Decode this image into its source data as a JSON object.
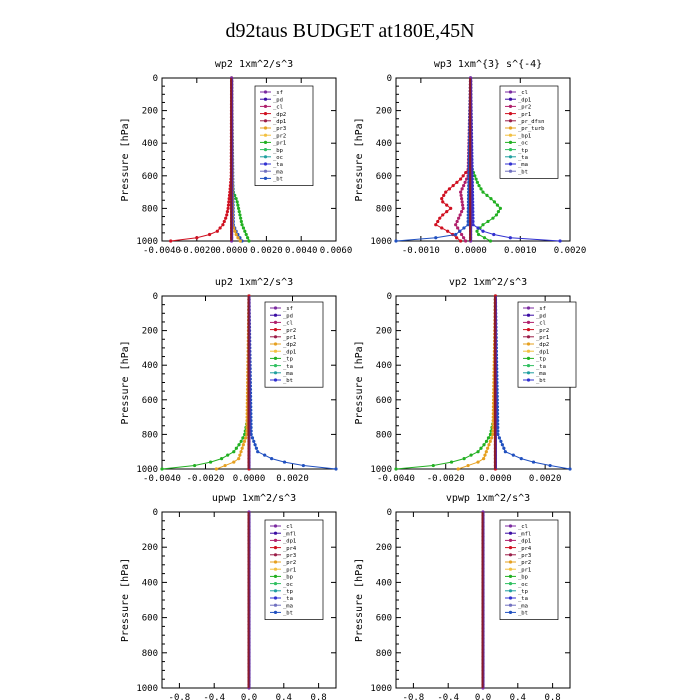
{
  "page_title": "d92taus  BUDGET at180E,45N",
  "colors": {
    "sf": "#7b2aa0",
    "pd": "#3a0ca3",
    "cl": "#b0206b",
    "dp2": "#d01020",
    "dp1": "#9b1d48",
    "pr3": "#e6a020",
    "pr2": "#f2c040",
    "pr1": "#22b022",
    "bp": "#30c060",
    "oc": "#20a0a0",
    "ta": "#7070c0",
    "ma": "#2050c0",
    "bt": "#30d0e0",
    "tp": "#3030d0",
    "pr_dfsn": "#e08020",
    "pr_turb": "#e0c020",
    "bp1": "#50c050",
    "mfl": "#a03090",
    "pr4": "#c03030"
  },
  "chart_data": [
    {
      "type": "line",
      "title": "wp2   1xm^2/s^3",
      "ylabel": "Pressure [hPa]",
      "xlim": [
        -0.004,
        0.006
      ],
      "ylim": [
        1000,
        0
      ],
      "x_ticks": [
        -0.004,
        -0.002,
        0.0,
        0.002,
        0.004,
        0.006
      ],
      "x_tick_labels": [
        "-0.0040",
        "-0.0020",
        "0.0000",
        "0.0020",
        "0.0040",
        "0.0060"
      ],
      "y_ticks": [
        0,
        200,
        400,
        600,
        800,
        1000
      ],
      "legend": [
        "_sf",
        "_pd",
        "_cl",
        "_dp2",
        "_dp1",
        "_pr3",
        "_pr2",
        "_pr1",
        "_bp",
        "_oc",
        "_ta",
        "_ma",
        "_bt"
      ],
      "series": [
        {
          "name": "_pr1",
          "color_key": "pr1",
          "profile": [
            [
              0,
              0
            ],
            [
              600,
              2e-05
            ],
            [
              700,
              0.0001
            ],
            [
              750,
              0.0003
            ],
            [
              800,
              0.0004
            ],
            [
              850,
              0.0005
            ],
            [
              900,
              0.0006
            ],
            [
              950,
              0.0008
            ],
            [
              1000,
              0.001
            ]
          ]
        },
        {
          "name": "_dp2",
          "color_key": "dp2",
          "profile": [
            [
              0,
              0
            ],
            [
              600,
              -2e-05
            ],
            [
              700,
              -0.0001
            ],
            [
              800,
              -0.0002
            ],
            [
              850,
              -0.0003
            ],
            [
              900,
              -0.0005
            ],
            [
              950,
              -0.0009
            ],
            [
              980,
              -0.002
            ],
            [
              1000,
              -0.0035
            ]
          ]
        },
        {
          "name": "_ma",
          "color_key": "ma",
          "profile": [
            [
              0,
              0
            ],
            [
              900,
              0.0001
            ],
            [
              950,
              0.0003
            ],
            [
              1000,
              0.0006
            ]
          ]
        },
        {
          "name": "_pr3",
          "color_key": "pr3",
          "profile": [
            [
              0,
              0
            ],
            [
              900,
              5e-05
            ],
            [
              970,
              0.0003
            ],
            [
              1000,
              0.0005
            ]
          ]
        },
        {
          "name": "_sf",
          "color_key": "sf",
          "profile": [
            [
              0,
              0
            ],
            [
              1000,
              0
            ]
          ]
        }
      ]
    },
    {
      "type": "line",
      "title": "wp3   1xm^{3} s^{-4}",
      "ylabel": "Pressure [hPa]",
      "xlim": [
        -0.0015,
        0.002
      ],
      "ylim": [
        1000,
        0
      ],
      "x_ticks": [
        -0.001,
        0.0,
        0.001,
        0.002
      ],
      "x_tick_labels": [
        "-0.0010",
        "0.0000",
        "0.0010",
        "0.0020"
      ],
      "y_ticks": [
        0,
        200,
        400,
        600,
        800,
        1000
      ],
      "legend": [
        "_cl",
        "_dp1",
        "_pr2",
        "_pr1",
        "_pr_dfsn",
        "_pr_turb",
        "_bp1",
        "_oc",
        "_tp",
        "_ta",
        "_ma",
        "_bt"
      ],
      "series": [
        {
          "name": "_pr1",
          "color_key": "pr1",
          "profile": [
            [
              0,
              0
            ],
            [
              550,
              2e-05
            ],
            [
              650,
              0.00015
            ],
            [
              700,
              0.00025
            ],
            [
              750,
              0.00045
            ],
            [
              800,
              0.0006
            ],
            [
              850,
              0.0005
            ],
            [
              900,
              0.00025
            ],
            [
              950,
              0.0001
            ],
            [
              1000,
              0.0004
            ]
          ]
        },
        {
          "name": "_dp1",
          "color_key": "dp2",
          "profile": [
            [
              0,
              0
            ],
            [
              550,
              -2e-05
            ],
            [
              620,
              -0.0002
            ],
            [
              700,
              -0.0005
            ],
            [
              750,
              -0.0006
            ],
            [
              800,
              -0.0004
            ],
            [
              850,
              -0.0006
            ],
            [
              900,
              -0.0007
            ],
            [
              950,
              -0.0004
            ],
            [
              1000,
              -0.0002
            ]
          ]
        },
        {
          "name": "_pr2",
          "color_key": "cl",
          "profile": [
            [
              0,
              0
            ],
            [
              600,
              -5e-05
            ],
            [
              700,
              -0.0002
            ],
            [
              800,
              -0.00015
            ],
            [
              900,
              -0.0003
            ],
            [
              1000,
              -0.0001
            ]
          ]
        },
        {
          "name": "_ta",
          "color_key": "tp",
          "profile": [
            [
              0,
              0
            ],
            [
              900,
              5e-05
            ],
            [
              950,
              0.0003
            ],
            [
              980,
              0.0008
            ],
            [
              1000,
              0.0018
            ]
          ]
        },
        {
          "name": "_ma",
          "color_key": "ma",
          "profile": [
            [
              0,
              0
            ],
            [
              900,
              -5e-05
            ],
            [
              960,
              -0.0003
            ],
            [
              985,
              -0.0008
            ],
            [
              1000,
              -0.0015
            ]
          ]
        },
        {
          "name": "_cl",
          "color_key": "sf",
          "profile": [
            [
              0,
              0
            ],
            [
              1000,
              0
            ]
          ]
        }
      ]
    },
    {
      "type": "line",
      "title": "up2   1xm^2/s^3",
      "ylabel": "Pressure [hPa]",
      "xlim": [
        -0.004,
        0.004
      ],
      "ylim": [
        1000,
        0
      ],
      "x_ticks": [
        -0.004,
        -0.002,
        0.0,
        0.002
      ],
      "x_tick_labels": [
        "-0.0040",
        "-0.0020",
        "0.0000",
        "0.0020"
      ],
      "y_ticks": [
        0,
        200,
        400,
        600,
        800,
        1000
      ],
      "legend": [
        "_sf",
        "_pd",
        "_cl",
        "_pr2",
        "_pr1",
        "_dp2",
        "_dp1",
        "_tp",
        "_ta",
        "_ma",
        "_bt"
      ],
      "series": [
        {
          "name": "_dp2",
          "color_key": "pr1",
          "profile": [
            [
              0,
              0
            ],
            [
              700,
              -5e-05
            ],
            [
              800,
              -0.0002
            ],
            [
              850,
              -0.0004
            ],
            [
              900,
              -0.0007
            ],
            [
              950,
              -0.0014
            ],
            [
              980,
              -0.0025
            ],
            [
              1000,
              -0.004
            ]
          ]
        },
        {
          "name": "_tp",
          "color_key": "ma",
          "profile": [
            [
              0,
              0
            ],
            [
              800,
              0.0001
            ],
            [
              900,
              0.0004
            ],
            [
              950,
              0.0012
            ],
            [
              980,
              0.0025
            ],
            [
              1000,
              0.004
            ]
          ]
        },
        {
          "name": "_pr2",
          "color_key": "pr3",
          "profile": [
            [
              0,
              0
            ],
            [
              800,
              -0.0001
            ],
            [
              950,
              -0.0005
            ],
            [
              1000,
              -0.0015
            ]
          ]
        },
        {
          "name": "_sf",
          "color_key": "dp2",
          "profile": [
            [
              0,
              0
            ],
            [
              1000,
              0
            ]
          ]
        }
      ]
    },
    {
      "type": "line",
      "title": "vp2   1xm^2/s^3",
      "ylabel": "Pressure [hPa]",
      "xlim": [
        -0.004,
        0.003
      ],
      "ylim": [
        1000,
        0
      ],
      "x_ticks": [
        -0.004,
        -0.002,
        0.0,
        0.002
      ],
      "x_tick_labels": [
        "-0.0040",
        "-0.0020",
        "0.0000",
        "0.0020"
      ],
      "y_ticks": [
        0,
        200,
        400,
        600,
        800,
        1000
      ],
      "legend": [
        "_sf",
        "_pd",
        "_cl",
        "_pr2",
        "_pr1",
        "_dp2",
        "_dp1",
        "_tp",
        "_ta",
        "_ma",
        "_bt"
      ],
      "series": [
        {
          "name": "_dp2",
          "color_key": "pr1",
          "profile": [
            [
              0,
              0
            ],
            [
              700,
              -5e-05
            ],
            [
              800,
              -0.0002
            ],
            [
              850,
              -0.0004
            ],
            [
              900,
              -0.0007
            ],
            [
              950,
              -0.0014
            ],
            [
              980,
              -0.0025
            ],
            [
              1000,
              -0.004
            ]
          ]
        },
        {
          "name": "_tp",
          "color_key": "ma",
          "profile": [
            [
              0,
              0
            ],
            [
              800,
              0.0001
            ],
            [
              900,
              0.0004
            ],
            [
              950,
              0.0012
            ],
            [
              980,
              0.0022
            ],
            [
              1000,
              0.003
            ]
          ]
        },
        {
          "name": "_pr2",
          "color_key": "pr3",
          "profile": [
            [
              0,
              0
            ],
            [
              800,
              -0.0001
            ],
            [
              950,
              -0.0005
            ],
            [
              1000,
              -0.0015
            ]
          ]
        },
        {
          "name": "_sf",
          "color_key": "dp2",
          "profile": [
            [
              0,
              0
            ],
            [
              1000,
              0
            ]
          ]
        }
      ]
    },
    {
      "type": "line",
      "title": "upwp   1xm^2/s^3",
      "ylabel": "Pressure [hPa]",
      "xlim": [
        -1.0,
        1.0
      ],
      "ylim": [
        1000,
        0
      ],
      "x_ticks": [
        -0.8,
        -0.4,
        0.0,
        0.4,
        0.8
      ],
      "x_tick_labels": [
        "-0.8",
        "-0.4",
        "0.0",
        "0.4",
        "0.8"
      ],
      "y_ticks": [
        0,
        200,
        400,
        600,
        800,
        1000
      ],
      "legend": [
        "_cl",
        "_mfl",
        "_dp1",
        "_pr4",
        "_pr3",
        "_pr2",
        "_pr1",
        "_bp",
        "_oc",
        "_tp",
        "_ta",
        "_ma",
        "_bt"
      ],
      "series": [
        {
          "name": "_cl",
          "color_key": "sf",
          "profile": [
            [
              0,
              0
            ],
            [
              1000,
              0
            ]
          ]
        }
      ]
    },
    {
      "type": "line",
      "title": "vpwp   1xm^2/s^3",
      "ylabel": "Pressure [hPa]",
      "xlim": [
        -1.0,
        1.0
      ],
      "ylim": [
        1000,
        0
      ],
      "x_ticks": [
        -0.8,
        -0.4,
        0.0,
        0.4,
        0.8
      ],
      "x_tick_labels": [
        "-0.8",
        "-0.4",
        "0.0",
        "0.4",
        "0.8"
      ],
      "y_ticks": [
        0,
        200,
        400,
        600,
        800,
        1000
      ],
      "legend": [
        "_cl",
        "_mfl",
        "_dp1",
        "_pr4",
        "_pr3",
        "_pr2",
        "_pr1",
        "_bp",
        "_oc",
        "_tp",
        "_ta",
        "_ma",
        "_bt"
      ],
      "series": [
        {
          "name": "_cl",
          "color_key": "sf",
          "profile": [
            [
              0,
              0
            ],
            [
              1000,
              0
            ]
          ]
        }
      ]
    }
  ]
}
